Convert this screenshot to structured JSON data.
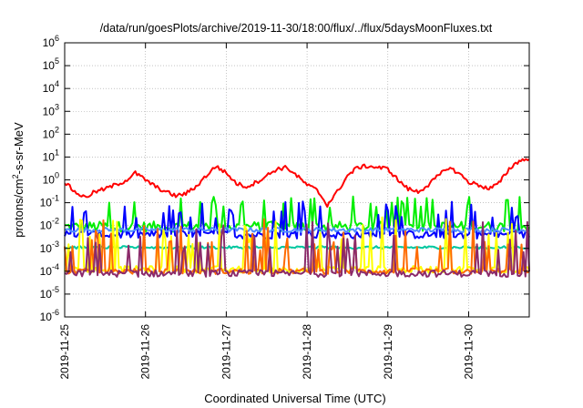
{
  "chart_data": {
    "type": "line",
    "title": "/data/run/goesPlots/archive/2019-11-30/18:00/flux/../flux/5daysMoonFluxes.txt",
    "xlabel": "Coordinated Universal Time (UTC)",
    "ylabel": {
      "pre": "protons/cm",
      "sup": "2",
      "post": "-s-sr-MeV"
    },
    "y_scale": "log",
    "ylim": [
      1e-06,
      1000000.0
    ],
    "y_ticks": [
      {
        "value": 1e-06,
        "base": "10",
        "exp": "-6"
      },
      {
        "value": 1e-05,
        "base": "10",
        "exp": "-5"
      },
      {
        "value": 0.0001,
        "base": "10",
        "exp": "-4"
      },
      {
        "value": 0.001,
        "base": "10",
        "exp": "-3"
      },
      {
        "value": 0.01,
        "base": "10",
        "exp": "-2"
      },
      {
        "value": 0.1,
        "base": "10",
        "exp": "-1"
      },
      {
        "value": 1,
        "base": "10",
        "exp": "0"
      },
      {
        "value": 10,
        "base": "10",
        "exp": "1"
      },
      {
        "value": 100,
        "base": "10",
        "exp": "2"
      },
      {
        "value": 1000,
        "base": "10",
        "exp": "3"
      },
      {
        "value": 10000,
        "base": "10",
        "exp": "4"
      },
      {
        "value": 100000,
        "base": "10",
        "exp": "5"
      },
      {
        "value": 1000000,
        "base": "10",
        "exp": "6"
      }
    ],
    "xlim": [
      "2019-11-25T00:00",
      "2019-11-30T18:00"
    ],
    "x_ticks": [
      "2019-11-25",
      "2019-11-26",
      "2019-11-27",
      "2019-11-28",
      "2019-11-29",
      "2019-11-30"
    ],
    "grid": true,
    "legend": "none",
    "series": [
      {
        "color": "#ff0000",
        "x": [
          "2019-11-25T00:00",
          "2019-11-25T03:00",
          "2019-11-25T06:00",
          "2019-11-25T09:00",
          "2019-11-25T12:00",
          "2019-11-25T15:00",
          "2019-11-25T18:00",
          "2019-11-25T21:00",
          "2019-11-26T00:00",
          "2019-11-26T03:00",
          "2019-11-26T06:00",
          "2019-11-26T09:00",
          "2019-11-26T12:00",
          "2019-11-26T15:00",
          "2019-11-26T18:00",
          "2019-11-26T21:00",
          "2019-11-27T00:00",
          "2019-11-27T03:00",
          "2019-11-27T06:00",
          "2019-11-27T09:00",
          "2019-11-27T12:00",
          "2019-11-27T15:00",
          "2019-11-27T18:00",
          "2019-11-27T21:00",
          "2019-11-28T00:00",
          "2019-11-28T03:00",
          "2019-11-28T06:00",
          "2019-11-28T09:00",
          "2019-11-28T12:00",
          "2019-11-28T15:00",
          "2019-11-28T18:00",
          "2019-11-28T21:00",
          "2019-11-29T00:00",
          "2019-11-29T03:00",
          "2019-11-29T06:00",
          "2019-11-29T09:00",
          "2019-11-29T12:00",
          "2019-11-29T15:00",
          "2019-11-29T18:00",
          "2019-11-29T21:00",
          "2019-11-30T00:00",
          "2019-11-30T03:00",
          "2019-11-30T06:00",
          "2019-11-30T09:00",
          "2019-11-30T12:00",
          "2019-11-30T15:00",
          "2019-11-30T18:00"
        ],
        "y": [
          0.8,
          0.3,
          0.17,
          0.3,
          0.4,
          0.6,
          0.9,
          2.0,
          1.0,
          0.5,
          0.3,
          0.2,
          0.25,
          0.5,
          1.5,
          4.0,
          2.0,
          0.7,
          0.5,
          0.8,
          1.5,
          3.0,
          3.5,
          1.5,
          0.6,
          0.35,
          0.08,
          0.3,
          1.5,
          3.5,
          4.0,
          3.5,
          3.0,
          1.0,
          0.4,
          0.3,
          0.6,
          1.5,
          3.5,
          2.0,
          0.8,
          0.6,
          0.4,
          0.7,
          3.0,
          7.0,
          8.0
        ]
      },
      {
        "color": "#00ee00",
        "level": 0.009,
        "spread": 0.45,
        "spike": 0.06
      },
      {
        "color": "#0000ff",
        "level": 0.004,
        "spread": 0.35,
        "spike": 0.02
      },
      {
        "color": "#4d8dff",
        "level": 0.0065,
        "spread": 0.2,
        "spike": 0.0
      },
      {
        "color": "#00c8a0",
        "level": 0.0011,
        "spread": 0.12,
        "spike": 0.0
      },
      {
        "color": "#ffff00",
        "level": 0.00012,
        "spread": 0.3,
        "spike": 0.0012
      },
      {
        "color": "#ff6a00",
        "level": 0.0001,
        "spread": 0.25,
        "spike": 0.0008
      },
      {
        "color": "#8b2a6a",
        "level": 8e-05,
        "spread": 0.3,
        "spike": 0.0005
      }
    ]
  }
}
